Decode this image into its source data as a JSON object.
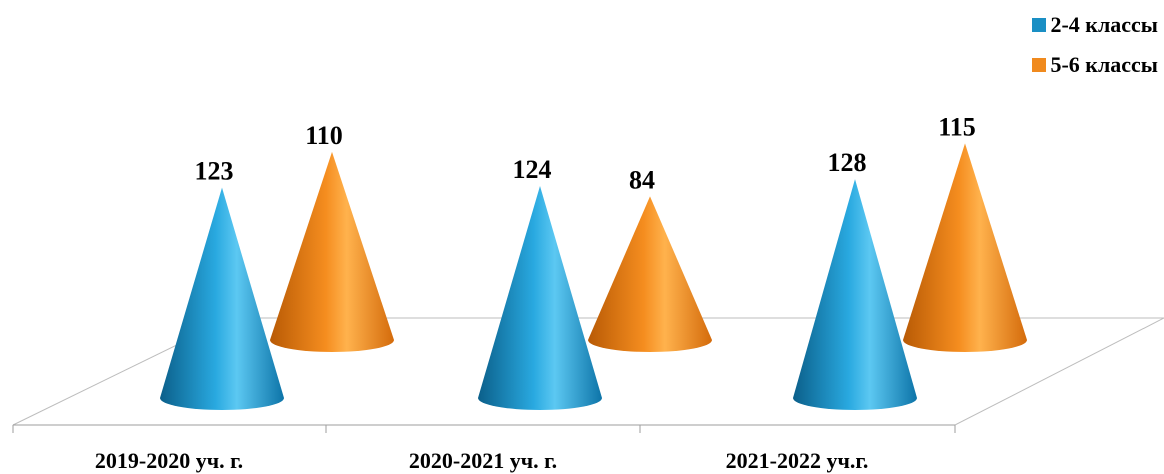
{
  "chart_data": {
    "type": "bar",
    "shape": "3d-cone",
    "categories": [
      "2019-2020 уч. г.",
      "2020-2021 уч. г.",
      "2021-2022 уч.г."
    ],
    "series": [
      {
        "name": "2-4 классы",
        "values": [
          123,
          124,
          128
        ],
        "color": "#1a8fc4"
      },
      {
        "name": "5-6 классы",
        "values": [
          110,
          84,
          115
        ],
        "color": "#f08a1e"
      }
    ],
    "title": "",
    "xlabel": "",
    "ylabel": "",
    "legend_position": "top-right",
    "grid": false
  }
}
